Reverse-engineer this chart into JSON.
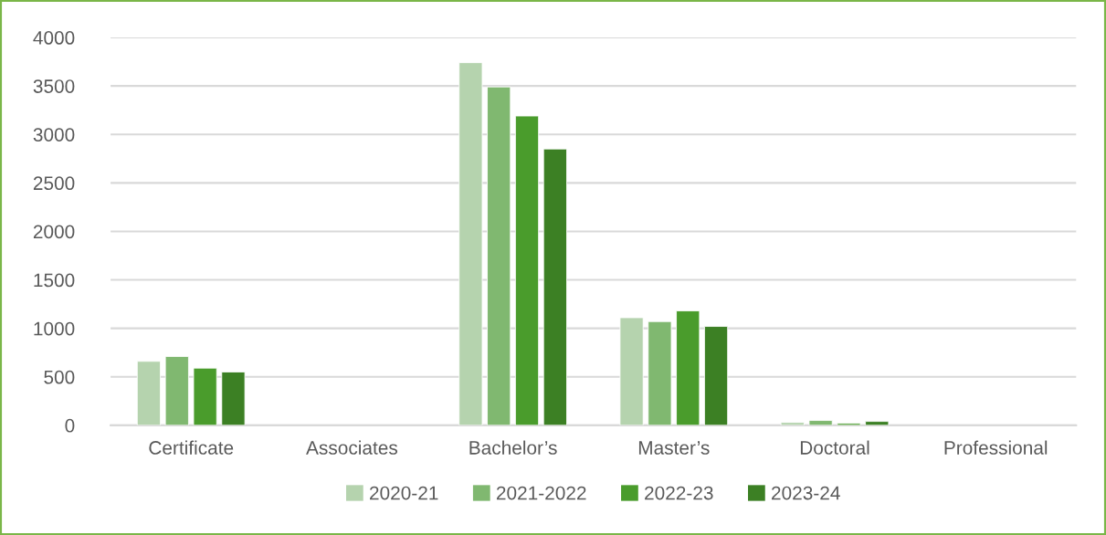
{
  "chart_data": {
    "type": "bar",
    "categories": [
      "Certificate",
      "Associates",
      "Bachelor’s",
      "Master’s",
      "Doctoral",
      "Professional"
    ],
    "series": [
      {
        "name": "2020-21",
        "color": "#b5d3ae",
        "values": [
          660,
          null,
          3740,
          1110,
          30,
          null
        ]
      },
      {
        "name": "2021-2022",
        "color": "#80b870",
        "values": [
          710,
          null,
          3490,
          1070,
          50,
          null
        ]
      },
      {
        "name": "2022-23",
        "color": "#4a9c2c",
        "values": [
          590,
          null,
          3190,
          1180,
          20,
          null
        ]
      },
      {
        "name": "2023-24",
        "color": "#3c8024",
        "values": [
          550,
          null,
          2850,
          1020,
          40,
          null
        ]
      }
    ],
    "ylim": [
      0,
      4000
    ],
    "yticks": [
      0,
      500,
      1000,
      1500,
      2000,
      2500,
      3000,
      3500,
      4000
    ],
    "grid": "y",
    "legend": "bottom"
  }
}
